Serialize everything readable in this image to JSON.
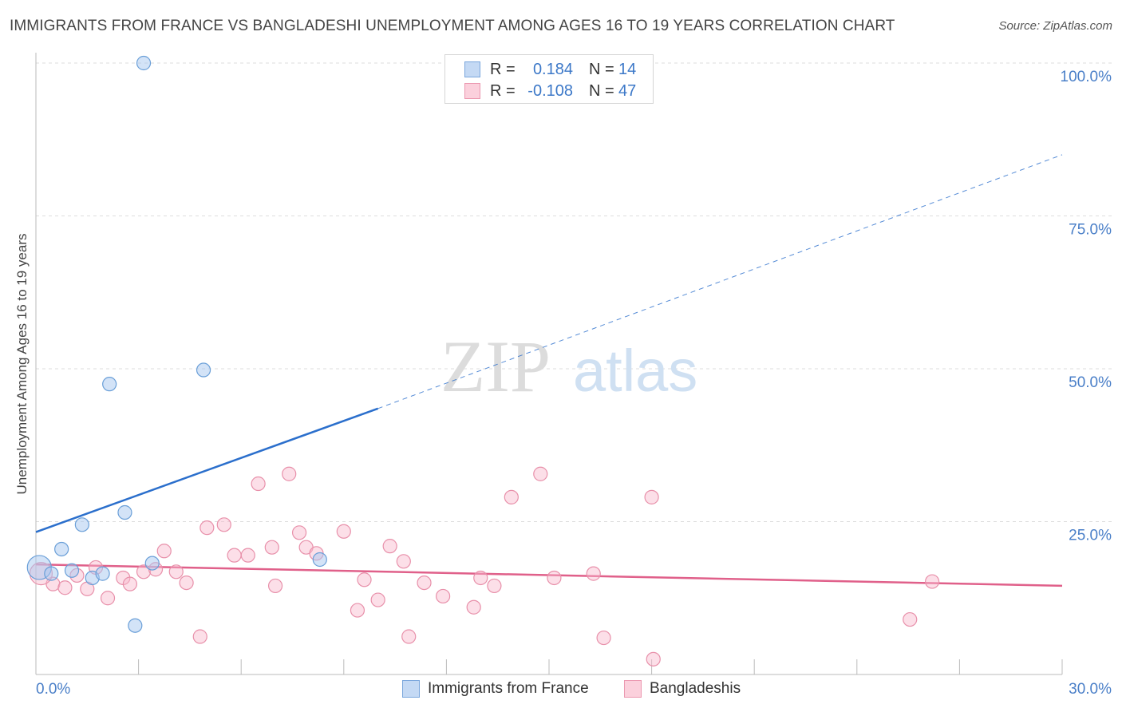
{
  "title": "IMMIGRANTS FROM FRANCE VS BANGLADESHI UNEMPLOYMENT AMONG AGES 16 TO 19 YEARS CORRELATION CHART",
  "source": "Source: ZipAtlas.com",
  "watermark": {
    "zip": "ZIP",
    "atlas": "atlas"
  },
  "colors": {
    "france_fill": "#a8c8f0",
    "france_stroke": "#6a9fd8",
    "france_line": "#2b6fcc",
    "bangladesh_fill": "#f8b8cc",
    "bangladesh_stroke": "#e890aa",
    "bangladesh_line": "#e0608a",
    "axis_text": "#4a7fc8",
    "grid": "#dddddd"
  },
  "legend": {
    "rows": [
      {
        "r_label": "R =",
        "r_value": "0.184",
        "n_label": "N =",
        "n_value": "14"
      },
      {
        "r_label": "R =",
        "r_value": "-0.108",
        "n_label": "N =",
        "n_value": "47"
      }
    ]
  },
  "bottom_legend": {
    "france": "Immigrants from France",
    "bangladesh": "Bangladeshis"
  },
  "chart_data": {
    "type": "scatter",
    "title": "IMMIGRANTS FROM FRANCE VS BANGLADESHI UNEMPLOYMENT AMONG AGES 16 TO 19 YEARS CORRELATION CHART",
    "xlabel": "",
    "ylabel": "Unemployment Among Ages 16 to 19 years",
    "xlim": [
      0,
      30
    ],
    "ylim": [
      0,
      100
    ],
    "x_tick_labels": [
      "0.0%",
      "30.0%"
    ],
    "y_tick_labels": [
      "25.0%",
      "50.0%",
      "75.0%",
      "100.0%"
    ],
    "y_ticks": [
      25,
      50,
      75,
      100
    ],
    "x_minor_ticks": [
      0,
      3,
      6,
      9,
      12,
      15,
      18,
      21,
      24,
      27,
      30
    ],
    "grid": true,
    "legend_position": "top-center",
    "series": [
      {
        "name": "Immigrants from France",
        "points": [
          {
            "x": 0.1,
            "y": 17.5
          },
          {
            "x": 0.45,
            "y": 16.5
          },
          {
            "x": 0.75,
            "y": 20.5
          },
          {
            "x": 1.05,
            "y": 17.0
          },
          {
            "x": 1.35,
            "y": 24.5
          },
          {
            "x": 1.65,
            "y": 15.8
          },
          {
            "x": 1.95,
            "y": 16.5
          },
          {
            "x": 2.15,
            "y": 47.5
          },
          {
            "x": 2.6,
            "y": 26.5
          },
          {
            "x": 2.9,
            "y": 8.0
          },
          {
            "x": 3.15,
            "y": 100.0
          },
          {
            "x": 3.4,
            "y": 18.2
          },
          {
            "x": 4.9,
            "y": 49.8
          },
          {
            "x": 8.3,
            "y": 18.8
          }
        ],
        "trend": {
          "x0": 0,
          "y0": 23.3,
          "x1": 10,
          "y1": 43.5,
          "x_dash_end": 30,
          "y_dash_end": 85.0
        }
      },
      {
        "name": "Bangladeshis",
        "points": [
          {
            "x": 0.5,
            "y": 14.8
          },
          {
            "x": 0.85,
            "y": 14.2
          },
          {
            "x": 1.2,
            "y": 16.2
          },
          {
            "x": 1.5,
            "y": 14.0
          },
          {
            "x": 1.75,
            "y": 17.5
          },
          {
            "x": 2.1,
            "y": 12.5
          },
          {
            "x": 2.55,
            "y": 15.8
          },
          {
            "x": 2.75,
            "y": 14.8
          },
          {
            "x": 3.15,
            "y": 16.8
          },
          {
            "x": 3.5,
            "y": 17.2
          },
          {
            "x": 3.75,
            "y": 20.2
          },
          {
            "x": 4.1,
            "y": 16.8
          },
          {
            "x": 4.4,
            "y": 15.0
          },
          {
            "x": 4.8,
            "y": 6.2
          },
          {
            "x": 5.0,
            "y": 24.0
          },
          {
            "x": 5.5,
            "y": 24.5
          },
          {
            "x": 5.8,
            "y": 19.5
          },
          {
            "x": 6.2,
            "y": 19.5
          },
          {
            "x": 6.5,
            "y": 31.2
          },
          {
            "x": 6.9,
            "y": 20.8
          },
          {
            "x": 7.0,
            "y": 14.5
          },
          {
            "x": 7.4,
            "y": 32.8
          },
          {
            "x": 7.7,
            "y": 23.2
          },
          {
            "x": 7.9,
            "y": 20.8
          },
          {
            "x": 8.2,
            "y": 19.8
          },
          {
            "x": 9.0,
            "y": 23.4
          },
          {
            "x": 9.4,
            "y": 10.5
          },
          {
            "x": 9.6,
            "y": 15.5
          },
          {
            "x": 10.0,
            "y": 12.2
          },
          {
            "x": 10.35,
            "y": 21.0
          },
          {
            "x": 10.75,
            "y": 18.5
          },
          {
            "x": 10.9,
            "y": 6.2
          },
          {
            "x": 11.35,
            "y": 15.0
          },
          {
            "x": 11.9,
            "y": 12.8
          },
          {
            "x": 12.8,
            "y": 11.0
          },
          {
            "x": 13.0,
            "y": 15.8
          },
          {
            "x": 13.4,
            "y": 14.5
          },
          {
            "x": 13.9,
            "y": 29.0
          },
          {
            "x": 14.75,
            "y": 32.8
          },
          {
            "x": 15.15,
            "y": 15.8
          },
          {
            "x": 16.3,
            "y": 16.5
          },
          {
            "x": 16.6,
            "y": 6.0
          },
          {
            "x": 18.0,
            "y": 29.0
          },
          {
            "x": 18.05,
            "y": 2.5
          },
          {
            "x": 25.55,
            "y": 9.0
          },
          {
            "x": 26.2,
            "y": 15.2
          },
          {
            "x": 0.15,
            "y": 16.5
          }
        ],
        "trend": {
          "x0": 0,
          "y0": 18.0,
          "x1": 30,
          "y1": 14.5
        }
      }
    ]
  }
}
